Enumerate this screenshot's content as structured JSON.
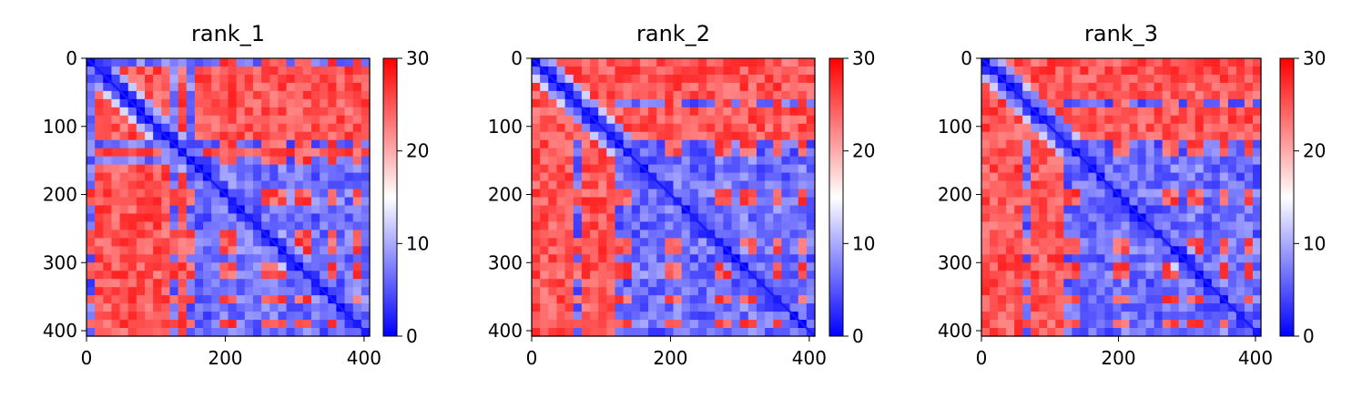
{
  "chart_data": [
    {
      "type": "heatmap",
      "title": "rank_1",
      "n": 408,
      "x_ticks": [
        0,
        200,
        400
      ],
      "y_ticks": [
        0,
        100,
        200,
        300,
        400
      ],
      "colorbar": {
        "min": 0,
        "max": 30,
        "ticks": [
          0,
          10,
          20,
          30
        ]
      },
      "colormap": [
        "#0000ff",
        "#ffffff",
        "#ff0000"
      ],
      "red_rows": [
        [
          8,
          50
        ],
        [
          50,
          115
        ],
        [
          133,
          150
        ],
        [
          195,
          215
        ],
        [
          255,
          290
        ],
        [
          300,
          325
        ],
        [
          345,
          360
        ],
        [
          380,
          395
        ]
      ],
      "blue_rows": [
        [
          0,
          8
        ],
        [
          115,
          133
        ],
        [
          150,
          195
        ],
        [
          215,
          255
        ],
        [
          290,
          300
        ],
        [
          325,
          345
        ],
        [
          360,
          380
        ],
        [
          395,
          408
        ]
      ],
      "blue_blocks": [
        [
          0,
          160,
          0,
          160
        ],
        [
          160,
          408,
          160,
          408
        ]
      ],
      "red_cross_band": [
        200,
        210
      ]
    },
    {
      "type": "heatmap",
      "title": "rank_2",
      "n": 408,
      "x_ticks": [
        0,
        200,
        400
      ],
      "y_ticks": [
        0,
        100,
        200,
        300,
        400
      ],
      "colorbar": {
        "min": 0,
        "max": 30,
        "ticks": [
          0,
          10,
          20,
          30
        ]
      },
      "colormap": [
        "#0000ff",
        "#ffffff",
        "#ff0000"
      ],
      "red_rows": [
        [
          0,
          55
        ],
        [
          70,
          120
        ],
        [
          190,
          215
        ],
        [
          265,
          290
        ],
        [
          295,
          325
        ],
        [
          345,
          360
        ],
        [
          382,
          395
        ]
      ],
      "blue_rows": [
        [
          55,
          70
        ],
        [
          120,
          190
        ],
        [
          215,
          265
        ],
        [
          290,
          295
        ],
        [
          325,
          345
        ],
        [
          360,
          382
        ],
        [
          395,
          408
        ]
      ],
      "blue_blocks": [
        [
          150,
          408,
          150,
          408
        ]
      ],
      "red_cross_band": [
        200,
        210
      ]
    },
    {
      "type": "heatmap",
      "title": "rank_3",
      "n": 408,
      "x_ticks": [
        0,
        200,
        400
      ],
      "y_ticks": [
        0,
        100,
        200,
        300,
        400
      ],
      "colorbar": {
        "min": 0,
        "max": 30,
        "ticks": [
          0,
          10,
          20,
          30
        ]
      },
      "colormap": [
        "#0000ff",
        "#ffffff",
        "#ff0000"
      ],
      "red_rows": [
        [
          0,
          60
        ],
        [
          75,
          120
        ],
        [
          190,
          215
        ],
        [
          260,
          290
        ],
        [
          295,
          320
        ],
        [
          345,
          360
        ],
        [
          382,
          395
        ]
      ],
      "blue_rows": [
        [
          60,
          75
        ],
        [
          120,
          190
        ],
        [
          215,
          260
        ],
        [
          290,
          295
        ],
        [
          320,
          345
        ],
        [
          360,
          382
        ],
        [
          395,
          408
        ]
      ],
      "blue_blocks": [
        [
          150,
          408,
          150,
          408
        ]
      ],
      "red_cross_band": [
        200,
        210
      ]
    }
  ]
}
